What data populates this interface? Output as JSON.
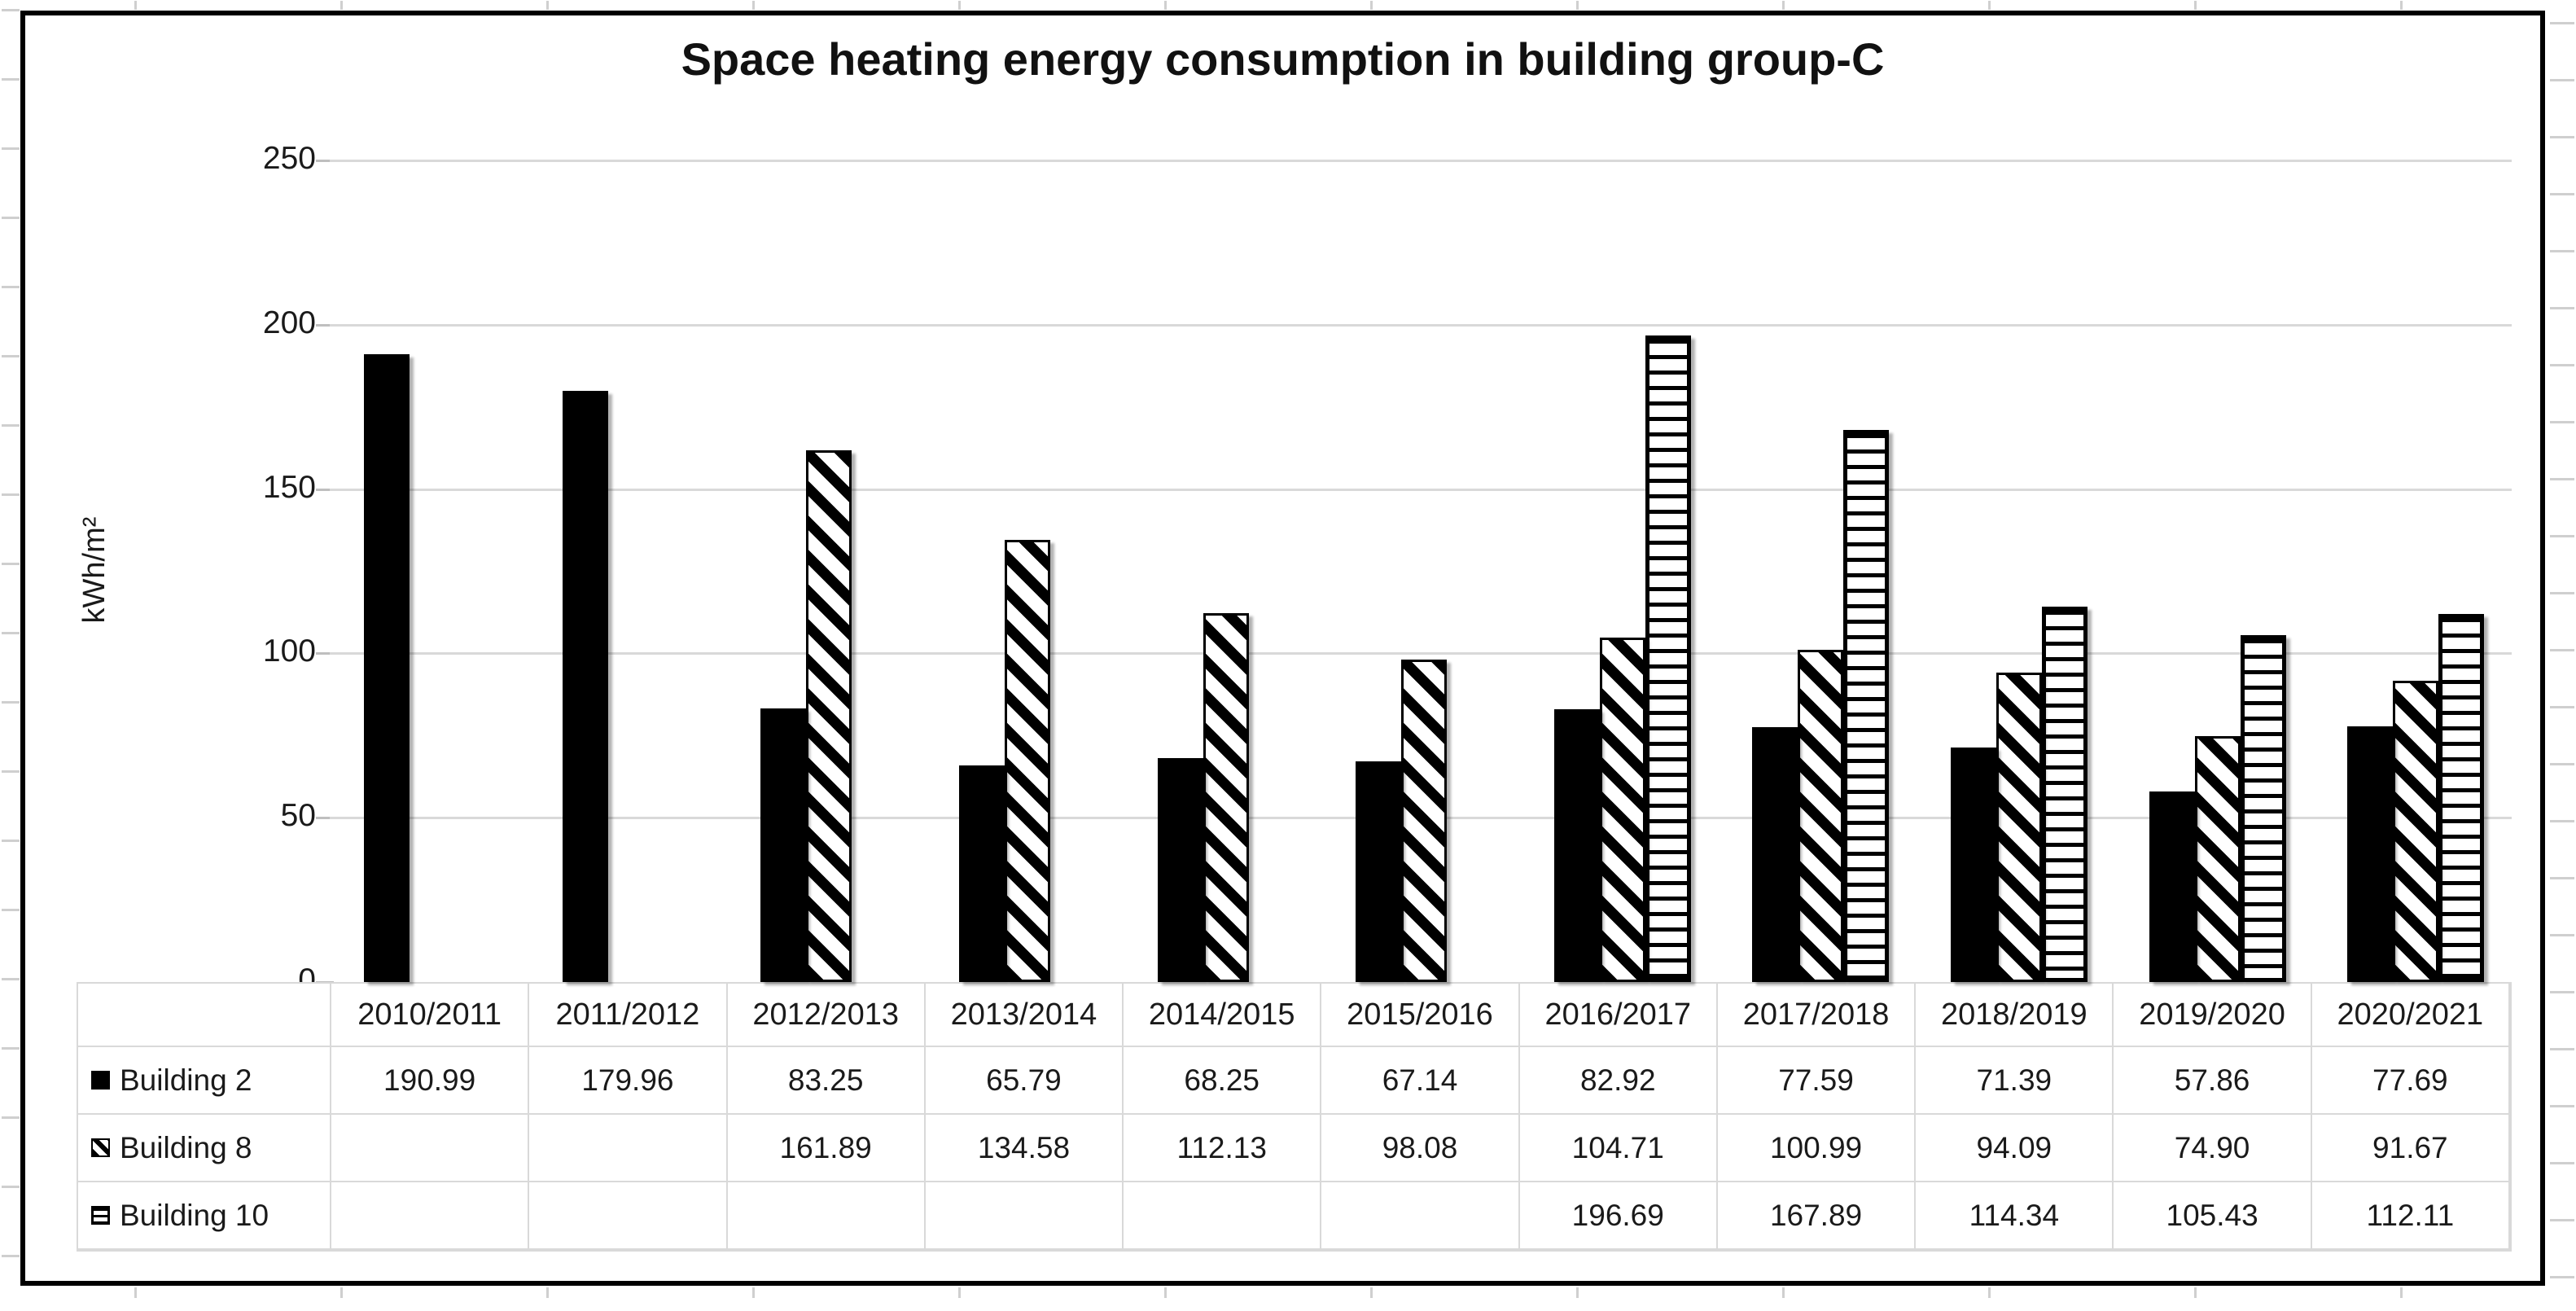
{
  "colors": {
    "bar_fill": "#000000",
    "grid_line": "#d9d9d9",
    "tick_mark": "#bfbfbf",
    "chart_border": "#000000",
    "table_border": "#d9d9d9",
    "text": "#1a1a1a",
    "worksheet_stub": "#cfcfcf"
  },
  "chart_data": {
    "type": "bar",
    "title": "Space heating energy consumption in building group-C",
    "xlabel": "",
    "ylabel": "kWh/m²",
    "ylim": [
      0,
      250
    ],
    "yticks": [
      0,
      50,
      100,
      150,
      200,
      250
    ],
    "grid": true,
    "legend_position": "data-table-left",
    "value_display_decimals": 2,
    "categories": [
      "2010/2011",
      "2011/2012",
      "2012/2013",
      "2013/2014",
      "2014/2015",
      "2015/2016",
      "2016/2017",
      "2017/2018",
      "2018/2019",
      "2019/2020",
      "2020/2021"
    ],
    "series": [
      {
        "name": "Building 2",
        "pattern": "solid",
        "values": [
          190.99,
          179.96,
          83.25,
          65.79,
          68.25,
          67.14,
          82.92,
          77.59,
          71.39,
          57.86,
          77.69
        ]
      },
      {
        "name": "Building 8",
        "pattern": "diagonal-stripe",
        "values": [
          null,
          null,
          161.89,
          134.58,
          112.13,
          98.08,
          104.71,
          100.99,
          94.09,
          74.9,
          91.67
        ]
      },
      {
        "name": "Building 10",
        "pattern": "horizontal-stripe",
        "values": [
          null,
          null,
          null,
          null,
          null,
          null,
          196.69,
          167.89,
          114.34,
          105.43,
          112.11
        ]
      }
    ]
  }
}
